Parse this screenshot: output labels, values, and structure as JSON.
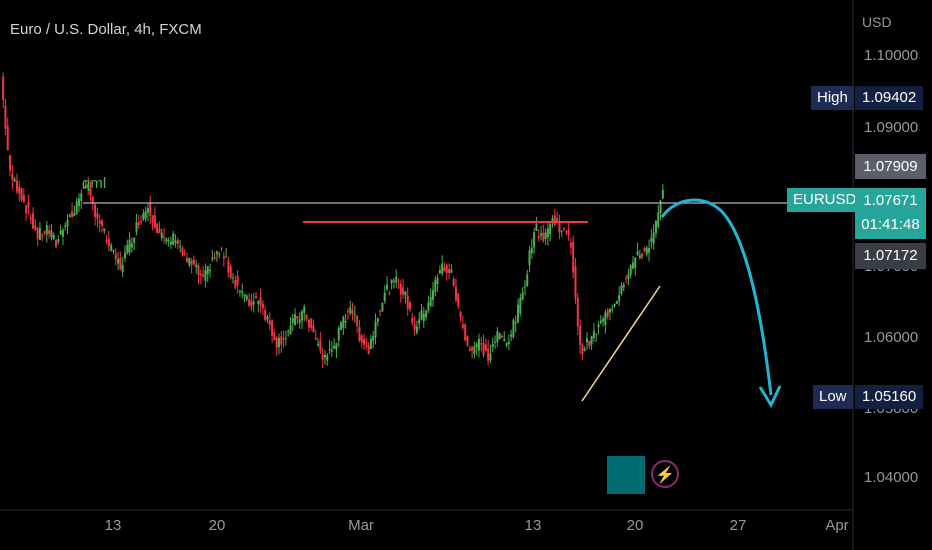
{
  "header": {
    "title": "Euro / U.S. Dollar, 4h, FXCM",
    "currency": "USD"
  },
  "price_axis": {
    "ticks": [
      "1.10000",
      "1.09000",
      "1.07000",
      "1.06000",
      "1.05000",
      "1.04000"
    ]
  },
  "time_axis": {
    "ticks": [
      "13",
      "20",
      "Mar",
      "13",
      "20",
      "27",
      "Apr"
    ]
  },
  "markers": {
    "high_label": "High",
    "high_value": "1.09402",
    "low_label": "Low",
    "low_value": "1.05160",
    "symbol": "EURUSD",
    "last_price": "1.07671",
    "countdown": "01:41:48",
    "upper_price": "1.07909",
    "lower_price": "1.07172"
  },
  "annotation": {
    "qml": "qml"
  },
  "colors": {
    "up": "#4caf50",
    "down": "#f23645",
    "qml_line": "#b2b5be",
    "resistance": "#f23645",
    "trendline": "#f0d88a",
    "arrow": "#1fb6d3"
  },
  "chart_data": {
    "type": "candlestick",
    "title": "Euro / U.S. Dollar, 4h, FXCM",
    "ylabel": "USD",
    "ylim": [
      1.035,
      1.102
    ],
    "x_ticks": [
      "13",
      "20",
      "Mar",
      "13",
      "20",
      "27",
      "Apr"
    ],
    "y_ticks": [
      1.04,
      1.05,
      1.06,
      1.07,
      1.09,
      1.1
    ],
    "close_path": [
      1.092,
      1.079,
      1.077,
      1.074,
      1.071,
      1.072,
      1.07,
      1.073,
      1.074,
      1.078,
      1.075,
      1.072,
      1.069,
      1.067,
      1.07,
      1.073,
      1.075,
      1.072,
      1.07,
      1.071,
      1.068,
      1.067,
      1.065,
      1.068,
      1.069,
      1.066,
      1.064,
      1.062,
      1.063,
      1.06,
      1.057,
      1.058,
      1.06,
      1.061,
      1.058,
      1.055,
      1.056,
      1.059,
      1.062,
      1.058,
      1.056,
      1.061,
      1.064,
      1.065,
      1.063,
      1.059,
      1.061,
      1.064,
      1.067,
      1.066,
      1.06,
      1.056,
      1.057,
      1.055,
      1.058,
      1.057,
      1.06,
      1.065,
      1.072,
      1.071,
      1.073,
      1.072,
      1.07,
      1.056,
      1.057,
      1.059,
      1.061,
      1.063,
      1.066,
      1.068,
      1.069,
      1.071,
      1.0767
    ],
    "qml_level": 1.0785,
    "resistance_level": 1.0742,
    "high": 1.09402,
    "low": 1.0516,
    "last": 1.07671
  }
}
